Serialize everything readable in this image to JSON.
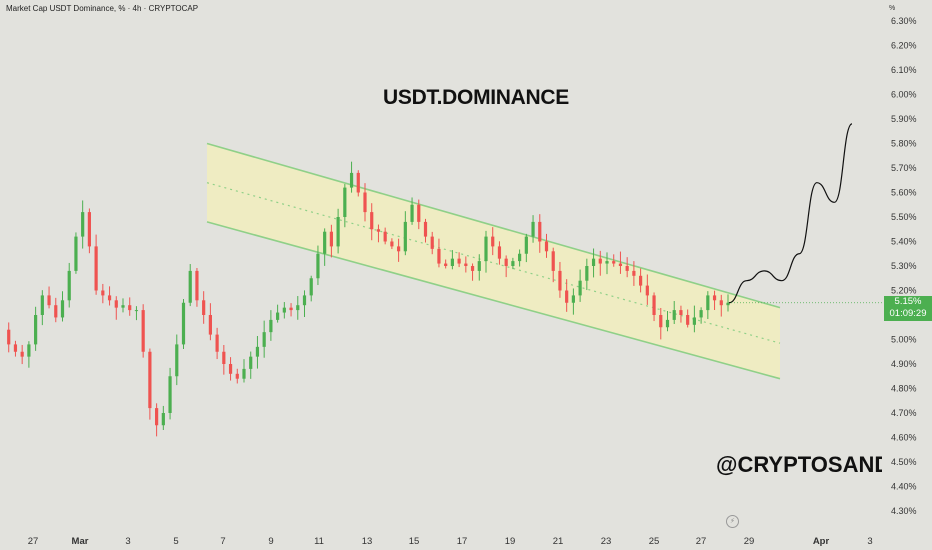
{
  "chart_data": {
    "type": "candlestick",
    "symbol_title": "Market Cap USDT Dominance, % · 4h · CRYPTOCAP",
    "title": "USDT.DOMINANCE",
    "watermark": "@CRYPTOSANDEEP",
    "y_unit": "%",
    "ylim": [
      4.26,
      6.36
    ],
    "y_ticks": [
      "4.30%",
      "4.40%",
      "4.50%",
      "4.60%",
      "4.70%",
      "4.80%",
      "4.90%",
      "5.00%",
      "5.10%",
      "5.20%",
      "5.30%",
      "5.40%",
      "5.50%",
      "5.60%",
      "5.70%",
      "5.80%",
      "5.90%",
      "6.00%",
      "6.10%",
      "6.20%",
      "6.30%"
    ],
    "x_ticks": [
      "27",
      "Mar",
      "3",
      "5",
      "7",
      "9",
      "11",
      "13",
      "15",
      "17",
      "19",
      "21",
      "23",
      "25",
      "27",
      "29",
      "Apr",
      "3"
    ],
    "last_price": "5.15%",
    "countdown": "01:09:29",
    "colors": {
      "up": "#4caf50",
      "down": "#ef5350",
      "channel_fill": "#f1edbd",
      "channel_line": "#8fd088",
      "price_tag": "#4caf50"
    },
    "channel": {
      "upper": [
        [
          "Mar 6",
          5.8
        ],
        [
          "Mar 28",
          5.13
        ]
      ],
      "lower": [
        [
          "Mar 6",
          5.48
        ],
        [
          "Mar 28",
          4.84
        ]
      ]
    },
    "close_path": [
      5.04,
      4.98,
      4.95,
      4.93,
      4.98,
      5.1,
      5.18,
      5.14,
      5.09,
      5.16,
      5.28,
      5.42,
      5.52,
      5.38,
      5.2,
      5.18,
      5.16,
      5.13,
      5.14,
      5.12,
      5.12,
      4.95,
      4.72,
      4.65,
      4.7,
      4.85,
      4.98,
      5.15,
      5.28,
      5.16,
      5.1,
      5.02,
      4.95,
      4.9,
      4.86,
      4.84,
      4.88,
      4.93,
      4.97,
      5.03,
      5.08,
      5.11,
      5.13,
      5.12,
      5.14,
      5.18,
      5.25,
      5.35,
      5.44,
      5.38,
      5.5,
      5.62,
      5.68,
      5.6,
      5.52,
      5.45,
      5.44,
      5.4,
      5.38,
      5.36,
      5.48,
      5.55,
      5.48,
      5.42,
      5.37,
      5.31,
      5.3,
      5.33,
      5.31,
      5.3,
      5.28,
      5.32,
      5.42,
      5.38,
      5.33,
      5.3,
      5.32,
      5.35,
      5.42,
      5.48,
      5.4,
      5.36,
      5.28,
      5.2,
      5.15,
      5.18,
      5.24,
      5.3,
      5.33,
      5.31,
      5.32,
      5.31,
      5.3,
      5.28,
      5.26,
      5.22,
      5.18,
      5.1,
      5.05,
      5.08,
      5.12,
      5.1,
      5.06,
      5.09,
      5.12,
      5.18,
      5.16,
      5.14,
      5.15
    ],
    "projection": [
      5.15,
      5.24,
      5.28,
      5.24,
      5.35,
      5.64,
      5.56,
      5.88
    ]
  }
}
